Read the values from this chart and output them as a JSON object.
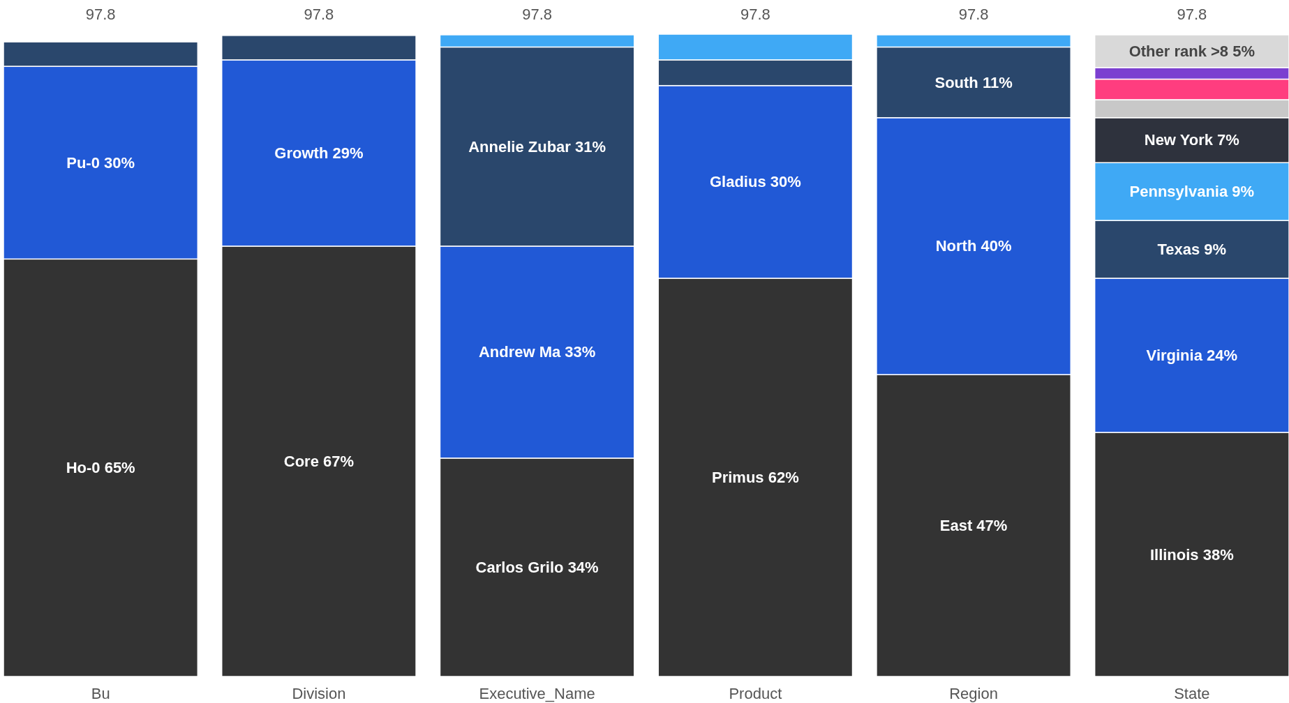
{
  "chart_data": {
    "type": "bar",
    "stacked": true,
    "categories": [
      "Bu",
      "Division",
      "Executive_Name",
      "Product",
      "Region",
      "State"
    ],
    "ylim": [
      0,
      100
    ],
    "series": [
      {
        "color": "#333333",
        "values": [
          65,
          67,
          34,
          62,
          47,
          38
        ],
        "value_labels": [
          "Ho-0 65%",
          "Core 67%",
          "Carlos Grilo 34%",
          "Primus 62%",
          "East 47%",
          "Illinois 38%"
        ]
      },
      {
        "color": "#2159d6",
        "values": [
          30,
          29,
          33,
          30,
          40,
          24
        ],
        "value_labels": [
          "Pu-0 30%",
          "Growth 29%",
          "Andrew Ma 33%",
          "Gladius 30%",
          "North 40%",
          "Virginia 24%"
        ]
      },
      {
        "color": "#2a476c",
        "values": [
          3.8,
          3.8,
          31,
          4,
          11,
          9
        ],
        "value_labels": [
          null,
          null,
          "Annelie Zubar 31%",
          null,
          "South 11%",
          "Texas 9%"
        ]
      },
      {
        "color": "#3fa9f5",
        "values": [
          null,
          null,
          1.9,
          4,
          1.9,
          9
        ],
        "value_labels": [
          null,
          null,
          null,
          null,
          null,
          "Pennsylvania 9%"
        ]
      },
      {
        "color": "#2e323d",
        "values": [
          null,
          null,
          null,
          null,
          null,
          7
        ],
        "value_labels": [
          null,
          null,
          null,
          null,
          null,
          "New York 7%"
        ]
      },
      {
        "color": "#c8c8c8",
        "values": [
          null,
          null,
          null,
          null,
          null,
          2.8
        ]
      },
      {
        "color": "#ff3d7f",
        "values": [
          null,
          null,
          null,
          null,
          null,
          3.2
        ]
      },
      {
        "color": "#7b3fd0",
        "values": [
          null,
          null,
          null,
          null,
          null,
          1.8
        ]
      },
      {
        "color": "#d9d9d9",
        "values": [
          null,
          null,
          null,
          null,
          null,
          5.1
        ],
        "value_labels": [
          null,
          null,
          null,
          null,
          null,
          "Other rank >8 5%"
        ]
      }
    ],
    "annotations": [
      "97.8",
      "97.8",
      "97.8",
      "97.8",
      "97.8",
      "97.8"
    ]
  }
}
